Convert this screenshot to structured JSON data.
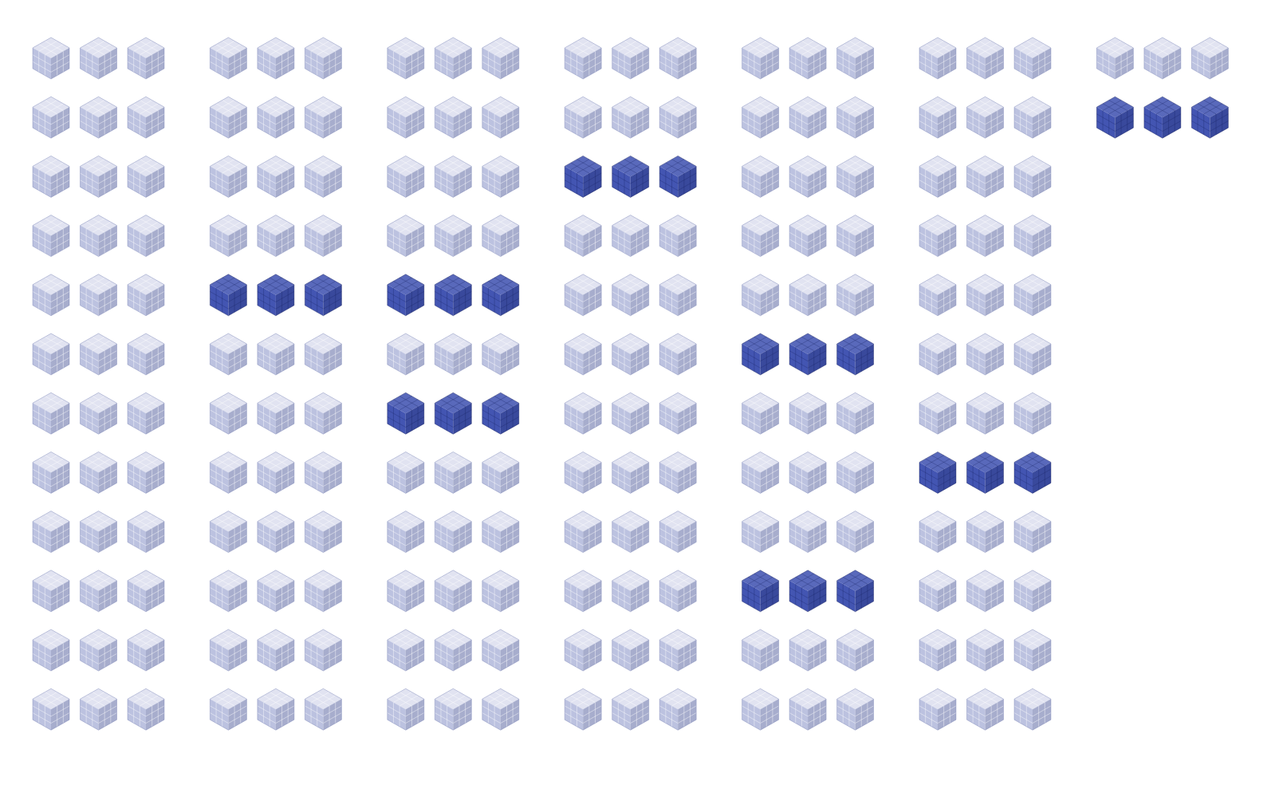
{
  "chart_data": {
    "type": "pictogram",
    "values": [
      12,
      12,
      12,
      12,
      12,
      12,
      2
    ],
    "per_row": 3,
    "highlighted_rows": [
      [],
      [
        5
      ],
      [
        5,
        7
      ],
      [
        3
      ],
      [
        6,
        10
      ],
      [
        8
      ],
      [
        2
      ]
    ],
    "color": "#4355b2"
  }
}
